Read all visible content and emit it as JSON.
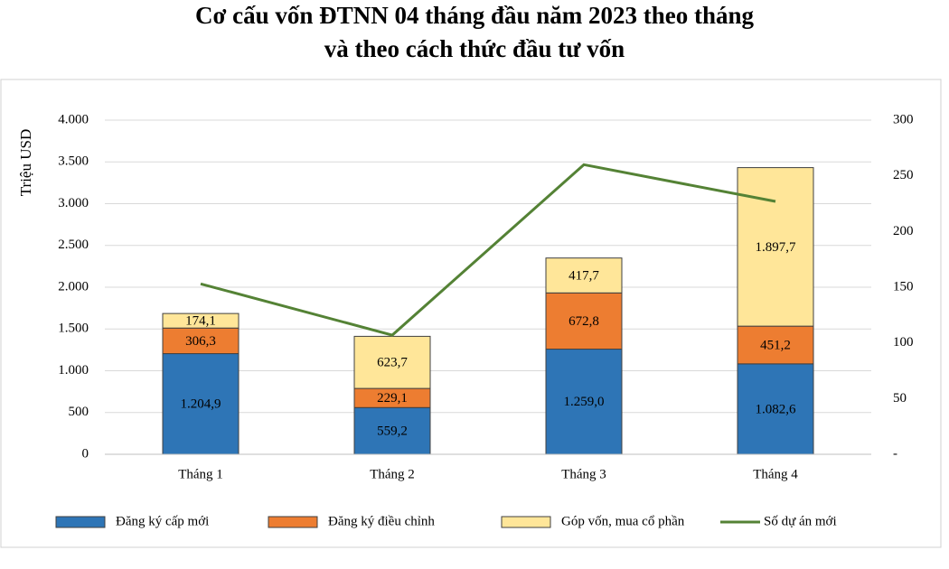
{
  "chart_data": {
    "type": "bar",
    "stacked": true,
    "title": [
      "Cơ cấu vốn ĐTNN 04 tháng đầu năm 2023 theo tháng",
      "và theo cách thức đầu tư vốn"
    ],
    "y_label": "Triệu USD",
    "categories": [
      "Tháng 1",
      "Tháng 2",
      "Tháng 3",
      "Tháng 4"
    ],
    "series": [
      {
        "name": "Đăng ký cấp mới",
        "color": "#2e75b6",
        "values": [
          1204.9,
          559.2,
          1259.0,
          1082.6
        ],
        "value_labels": [
          "1.204,9",
          "559,2",
          "1.259,0",
          "1.082,6"
        ],
        "label_color": "#000000"
      },
      {
        "name": "Đăng ký điều chỉnh",
        "color": "#ed7d31",
        "values": [
          306.3,
          229.1,
          672.8,
          451.2
        ],
        "value_labels": [
          "306,3",
          "229,1",
          "672,8",
          "451,2"
        ],
        "label_color": "#000000"
      },
      {
        "name": "Góp vốn, mua cổ phần",
        "color": "#ffe699",
        "values": [
          174.1,
          623.7,
          417.7,
          1897.7
        ],
        "value_labels": [
          "174,1",
          "623,7",
          "417,7",
          "1.897,7"
        ],
        "label_color": "#000000"
      },
      {
        "name": "Số dự án mới",
        "color": "#548235",
        "type": "line",
        "axis": "y2",
        "values": [
          153,
          107,
          260,
          227
        ]
      }
    ],
    "ylim": [
      0,
      4000
    ],
    "yticks": [
      0,
      500,
      {
        "value": 1000,
        "label": "1.000"
      },
      {
        "value": 1500,
        "label": "1.500"
      },
      {
        "value": 2000,
        "label": "2.000"
      },
      {
        "value": 2500,
        "label": "2.500"
      },
      {
        "value": 3000,
        "label": "3.000"
      },
      {
        "value": 3500,
        "label": "3.500"
      },
      {
        "value": 4000,
        "label": "4.000"
      }
    ],
    "y2lim": [
      0,
      300
    ],
    "y2ticks": [
      {
        "value": 0,
        "label": "-"
      },
      50,
      100,
      150,
      200,
      250,
      300
    ],
    "grid": true,
    "legend": "bottom"
  }
}
